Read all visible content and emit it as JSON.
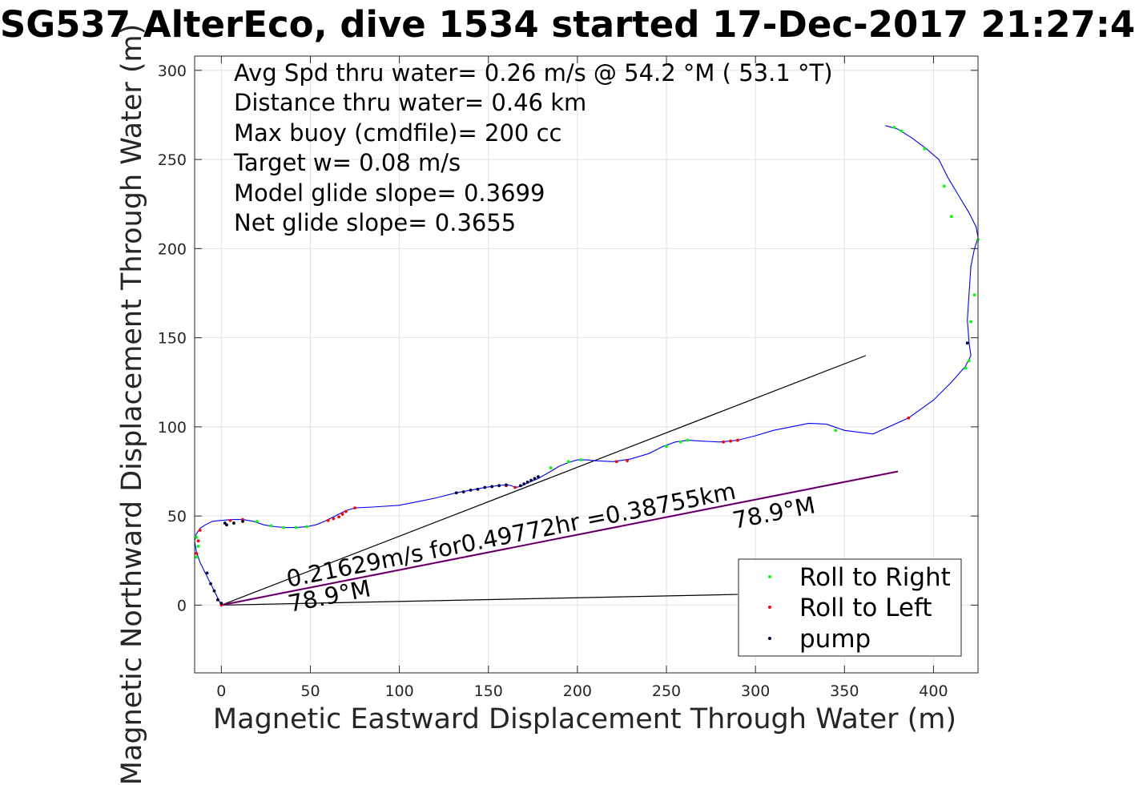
{
  "figure": {
    "title": "SG537 AlterEco, dive 1534 started 17-Dec-2017 21:27:4",
    "xlabel": "Magnetic Eastward Displacement Through Water (m)",
    "ylabel": "Magnetic Northward Displacement Through Water (m)"
  },
  "stats_text": [
    "Avg Spd thru water=  0.26 m/s @  54.2 °M ( 53.1 °T)",
    "Distance thru water=  0.46 km",
    "Max buoy (cmdfile)= 200 cc",
    "Target w= 0.08 m/s",
    "Model glide slope= 0.3699",
    "Net glide slope= 0.3655"
  ],
  "annotations": {
    "drift": "0.21629m/s for0.49772hr =0.38755km",
    "heading_near": "78.9°M",
    "heading_far": "78.9°M"
  },
  "legend": [
    {
      "label": "Roll to Right",
      "color": "#00ff00"
    },
    {
      "label": "Roll to Left",
      "color": "#ff0000"
    },
    {
      "label": "pump",
      "color": "#000033"
    }
  ],
  "chart_data": {
    "type": "line",
    "xlim": [
      -15,
      425
    ],
    "ylim": [
      -38,
      308
    ],
    "xticks": [
      0,
      50,
      100,
      150,
      200,
      250,
      300,
      350,
      400
    ],
    "yticks": [
      0,
      50,
      100,
      150,
      200,
      250,
      300
    ],
    "grid": true,
    "legend_position": "bottom-right",
    "track": {
      "name": "track",
      "color": "#0000ff",
      "x": [
        0,
        -3,
        -6,
        -9,
        -12,
        -14,
        -15,
        -14,
        -12,
        -9,
        -5,
        0,
        6,
        12,
        18,
        24,
        30,
        36,
        42,
        48,
        53,
        58,
        62,
        66,
        70,
        75,
        85,
        100,
        110,
        120,
        132,
        140,
        148,
        155,
        160,
        163,
        165,
        168,
        172,
        178,
        185,
        190,
        195,
        200,
        205,
        210,
        220,
        230,
        240,
        248,
        255,
        262,
        270,
        280,
        290,
        300,
        310,
        320,
        330,
        340,
        350,
        366,
        386,
        400,
        410,
        418,
        421,
        420,
        419,
        420,
        421,
        423,
        425,
        424,
        420,
        414,
        408,
        403,
        396,
        388,
        380,
        373
      ],
      "y": [
        0,
        6,
        12,
        18,
        24,
        30,
        36,
        40,
        43,
        45,
        47,
        47.5,
        48,
        48,
        47,
        45,
        44,
        43.5,
        43.5,
        44,
        45,
        47,
        49,
        51,
        53,
        54.5,
        55,
        56,
        58,
        60,
        63,
        64.5,
        66,
        67,
        67.5,
        67,
        66,
        66.5,
        68.5,
        71,
        75,
        78,
        80,
        81.5,
        81.5,
        81,
        80.5,
        82,
        85,
        89,
        91.5,
        92.5,
        92,
        91.5,
        92.5,
        95,
        98,
        100,
        102,
        101.5,
        98,
        96,
        105,
        115,
        125,
        134,
        140,
        147,
        160,
        175,
        190,
        200,
        206,
        212,
        220,
        230,
        240,
        250,
        256,
        262,
        267,
        269
      ]
    },
    "markers": {
      "roll_right": {
        "color": "#00ff00",
        "x": [
          -13,
          -14,
          -14,
          20,
          28,
          35,
          42,
          48,
          185,
          195,
          202,
          250,
          258,
          262,
          345,
          382,
          395,
          406,
          418,
          420,
          421,
          423,
          425,
          410,
          378
        ],
        "y": [
          33,
          27,
          38,
          47,
          44.5,
          43.5,
          43.5,
          44,
          77,
          80.5,
          81.5,
          89,
          91.5,
          92.5,
          98,
          266,
          256,
          235,
          133,
          137,
          159,
          174,
          205,
          218,
          268
        ]
      },
      "roll_left": {
        "color": "#ff0000",
        "x": [
          0,
          -14,
          -13,
          -12,
          5,
          12,
          60,
          63,
          66,
          68,
          70,
          75,
          160,
          165,
          222,
          228,
          282,
          286,
          290,
          386
        ],
        "y": [
          0,
          29,
          36,
          42,
          47.5,
          48,
          47.5,
          48.5,
          49.5,
          51,
          52.5,
          54.5,
          67,
          66,
          80.5,
          81,
          91.5,
          92,
          92.5,
          105
        ]
      },
      "pump": {
        "color": "#000033",
        "x": [
          3,
          7,
          12,
          0,
          -2,
          -4,
          -6,
          -8,
          2,
          132,
          136,
          140,
          144,
          148,
          152,
          156,
          160,
          168,
          170,
          172,
          174,
          176,
          178,
          419
        ],
        "y": [
          45,
          46,
          47,
          1,
          3,
          8,
          12,
          18,
          46,
          63,
          63.5,
          64.5,
          65,
          66,
          66.5,
          67,
          67.5,
          67,
          68,
          69,
          70,
          71,
          72,
          147
        ]
      }
    },
    "reference_lines": {
      "heading_line": {
        "x": [
          0,
          362
        ],
        "y": [
          0,
          140
        ]
      },
      "drift_line": {
        "x": [
          0,
          380
        ],
        "y": [
          0,
          75
        ]
      },
      "baseline": {
        "x": [
          0,
          290
        ],
        "y": [
          0,
          6
        ]
      }
    }
  }
}
